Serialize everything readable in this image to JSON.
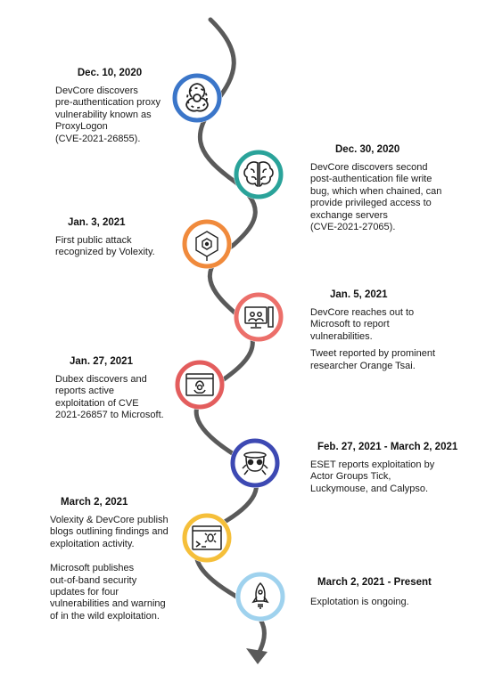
{
  "colors": {
    "line": "#5a5a5a",
    "blue": "#3b76c9",
    "teal": "#2aa39a",
    "orange": "#f08a3c",
    "salmon": "#ec6f6a",
    "red": "#e35d5d",
    "indigo": "#3d49b3",
    "yellow": "#f5bf3a",
    "lightblue": "#9fd2ee"
  },
  "events": [
    {
      "date": "Dec. 10, 2020",
      "desc": [
        "DevCore discovers\npre-authentication proxy\nvulnerability known as\nProxyLogon\n(CVE-2021-26855)."
      ],
      "icon": "biohazard-icon",
      "ring": "blue"
    },
    {
      "date": "Dec. 30, 2020",
      "desc": [
        "DevCore discovers second\npost-authentication file write\nbug, which when chained, can\nprovide privileged access to\nexchange servers\n(CVE-2021-27065)."
      ],
      "icon": "brain-icon",
      "ring": "teal"
    },
    {
      "date": "Jan. 3, 2021",
      "desc": [
        "First public attack\nrecognized by Volexity."
      ],
      "icon": "hexagon-network-icon",
      "ring": "orange"
    },
    {
      "date": "Jan. 5, 2021",
      "desc": [
        "DevCore reaches out to\nMicrosoft to report\nvulnerabilities.",
        "Tweet reported by prominent\nresearcher Orange Tsai."
      ],
      "icon": "computer-users-icon",
      "ring": "salmon"
    },
    {
      "date": "Jan. 27, 2021",
      "desc": [
        "Dubex discovers and\nreports active\nexploitation of CVE\n2021-26857 to Microsoft."
      ],
      "icon": "biohazard-window-icon",
      "ring": "red"
    },
    {
      "date": "Feb. 27, 2021 - March 2, 2021",
      "desc": [
        "ESET reports exploitation by\nActor Groups Tick,\nLuckymouse, and Calypso."
      ],
      "icon": "hacker-skull-icon",
      "ring": "indigo"
    },
    {
      "date": "March 2, 2021",
      "desc": [
        "Volexity & DevCore publish\nblogs outlining findings and\nexploitation activity.",
        "Microsoft publishes\nout-of-band security\nupdates for four\nvulnerabilities and warning\nof in the wild exploitation."
      ],
      "icon": "terminal-bug-icon",
      "ring": "yellow"
    },
    {
      "date": "March 2, 2021 - Present",
      "desc": [
        "Explotation is ongoing."
      ],
      "icon": "rocket-icon",
      "ring": "lightblue"
    }
  ]
}
